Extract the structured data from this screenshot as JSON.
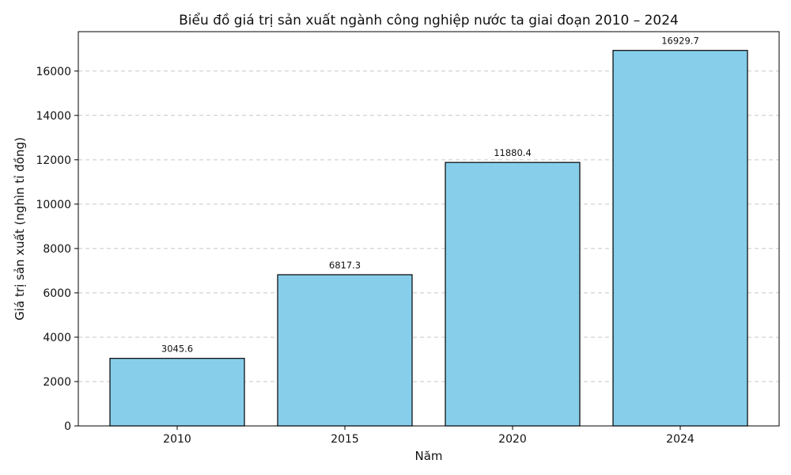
{
  "chart_data": {
    "type": "bar",
    "title": "Biểu đồ giá trị sản xuất ngành công nghiệp nước ta giai đoạn 2010 – 2024",
    "xlabel": "Năm",
    "ylabel": "Giá trị sản xuất (nghìn tỉ đồng)",
    "categories": [
      "2010",
      "2015",
      "2020",
      "2024"
    ],
    "values": [
      3045.6,
      6817.3,
      11880.4,
      16929.7
    ],
    "data_labels": [
      "3045.6",
      "6817.3",
      "11880.4",
      "16929.7"
    ],
    "ylim": [
      0,
      17776
    ],
    "yticks": [
      0,
      2000,
      4000,
      6000,
      8000,
      10000,
      12000,
      14000,
      16000
    ],
    "grid": "y-dashed",
    "bar_color": "#87ceeb",
    "edge_color": "#000000"
  }
}
